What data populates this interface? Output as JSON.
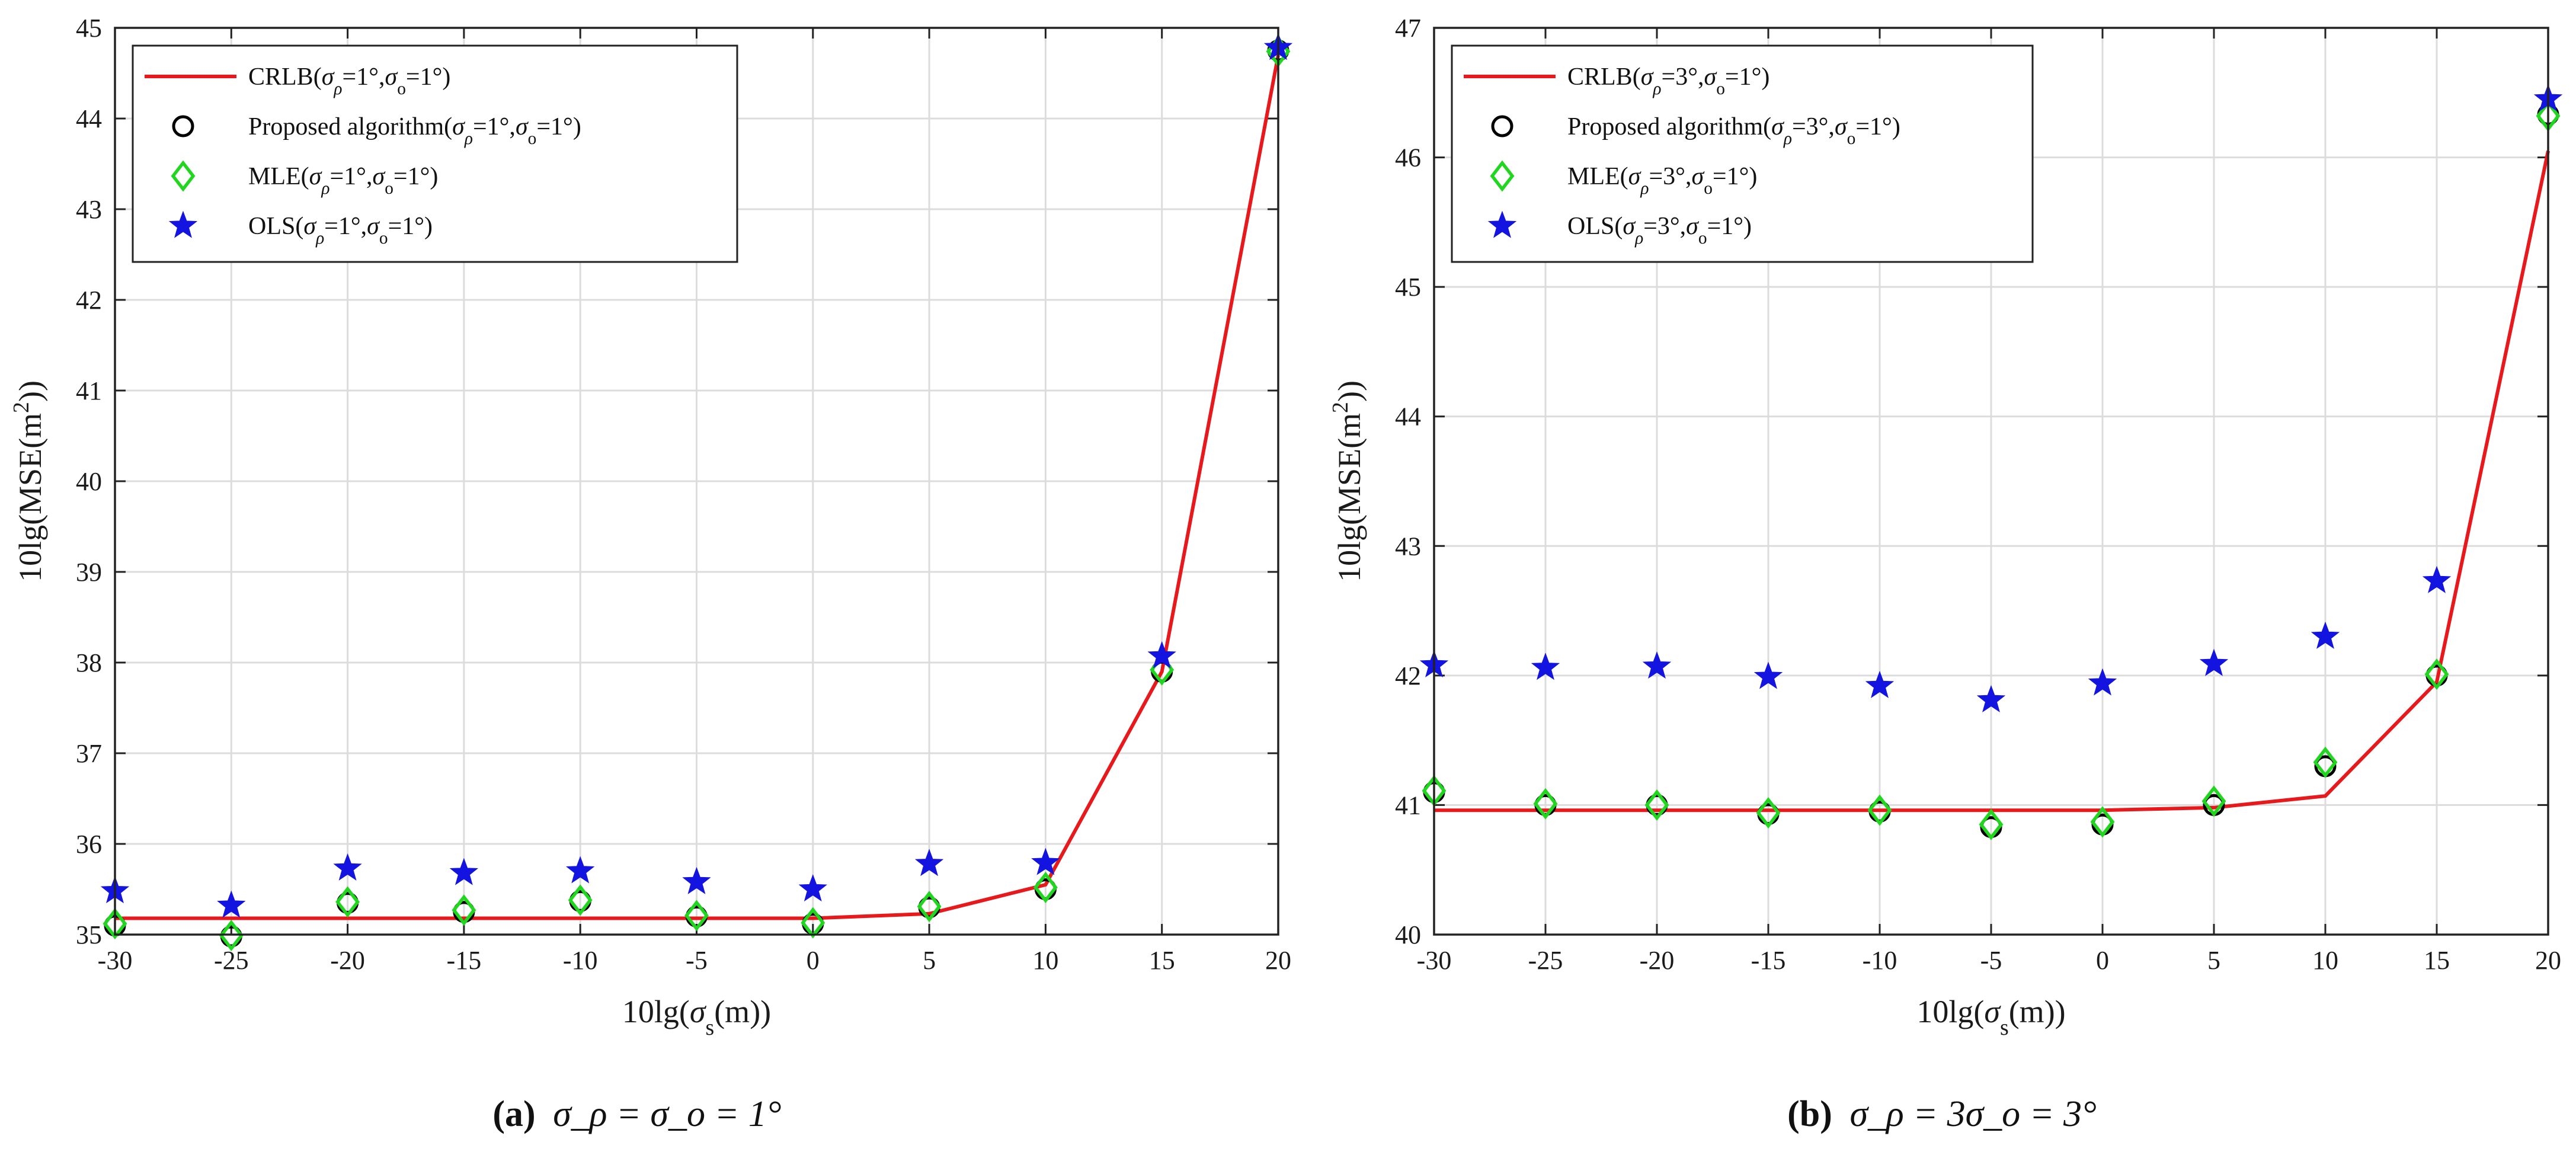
{
  "figure": {
    "caption_a": {
      "letter": "(a)",
      "math": "σ_ρ = σ_o = 1°"
    },
    "caption_b": {
      "letter": "(b)",
      "math": "σ_ρ = 3σ_o = 3°"
    }
  },
  "chart_data": [
    {
      "type": "line",
      "title": "",
      "xlabel": "10lg(σs(m))",
      "ylabel": "10lg(MSE(m²))",
      "xlim": [
        -30,
        20
      ],
      "ylim": [
        35,
        45
      ],
      "x": [
        -30,
        -25,
        -20,
        -15,
        -10,
        -5,
        0,
        5,
        10,
        15,
        20
      ],
      "xticks": [
        "-30",
        "-25",
        "-20",
        "-15",
        "-10",
        "-5",
        "0",
        "5",
        "10",
        "15",
        "20"
      ],
      "yticks": [
        "35",
        "36",
        "37",
        "38",
        "39",
        "40",
        "41",
        "42",
        "43",
        "44",
        "45"
      ],
      "grid": true,
      "legend_position": "top-left",
      "series": [
        {
          "name": "CRLB(σρ=1°,σo=1°)",
          "kind": "line",
          "color": "#e8191c",
          "values": [
            35.18,
            35.18,
            35.18,
            35.18,
            35.18,
            35.18,
            35.18,
            35.23,
            35.55,
            37.9,
            44.7
          ]
        },
        {
          "name": "Proposed algorithm(σρ=1°,σo=1°)",
          "kind": "marker",
          "marker": "circle",
          "color": "#000000",
          "values": [
            35.1,
            34.98,
            35.35,
            35.25,
            35.37,
            35.2,
            35.12,
            35.3,
            35.5,
            37.9,
            44.75
          ]
        },
        {
          "name": "MLE(σρ=1°,σo=1°)",
          "kind": "marker",
          "marker": "diamond",
          "color": "#21d61f",
          "values": [
            35.12,
            34.99,
            35.36,
            35.27,
            35.38,
            35.21,
            35.13,
            35.31,
            35.52,
            37.92,
            44.74
          ]
        },
        {
          "name": "OLS(σρ=1°,σo=1°)",
          "kind": "marker",
          "marker": "star",
          "color": "#1414e0",
          "values": [
            35.48,
            35.32,
            35.73,
            35.68,
            35.7,
            35.58,
            35.5,
            35.78,
            35.79,
            38.07,
            44.78
          ]
        }
      ]
    },
    {
      "type": "line",
      "title": "",
      "xlabel": "10lg(σs(m))",
      "ylabel": "10lg(MSE(m²))",
      "xlim": [
        -30,
        20
      ],
      "ylim": [
        40,
        47
      ],
      "x": [
        -30,
        -25,
        -20,
        -15,
        -10,
        -5,
        0,
        5,
        10,
        15,
        20
      ],
      "xticks": [
        "-30",
        "-25",
        "-20",
        "-15",
        "-10",
        "-5",
        "0",
        "5",
        "10",
        "15",
        "20"
      ],
      "yticks": [
        "40",
        "41",
        "42",
        "43",
        "44",
        "45",
        "46",
        "47"
      ],
      "grid": true,
      "legend_position": "top-left",
      "series": [
        {
          "name": "CRLB(σρ=3°,σo=1°)",
          "kind": "line",
          "color": "#e8191c",
          "values": [
            40.96,
            40.96,
            40.96,
            40.96,
            40.96,
            40.96,
            40.96,
            40.98,
            41.07,
            41.95,
            46.05
          ]
        },
        {
          "name": "Proposed algorithm(σρ=3°,σo=1°)",
          "kind": "marker",
          "marker": "circle",
          "color": "#000000",
          "values": [
            41.1,
            41.0,
            41.0,
            40.93,
            40.95,
            40.83,
            40.85,
            41.0,
            41.3,
            42.0,
            46.33
          ]
        },
        {
          "name": "MLE(σρ=3°,σo=1°)",
          "kind": "marker",
          "marker": "diamond",
          "color": "#21d61f",
          "values": [
            41.11,
            41.01,
            41.0,
            40.94,
            40.96,
            40.85,
            40.87,
            41.03,
            41.33,
            42.01,
            46.32
          ]
        },
        {
          "name": "OLS(σρ=3°,σo=1°)",
          "kind": "marker",
          "marker": "star",
          "color": "#1414e0",
          "values": [
            42.08,
            42.06,
            42.07,
            41.99,
            41.92,
            41.81,
            41.94,
            42.09,
            42.3,
            42.73,
            46.45
          ]
        }
      ]
    }
  ]
}
